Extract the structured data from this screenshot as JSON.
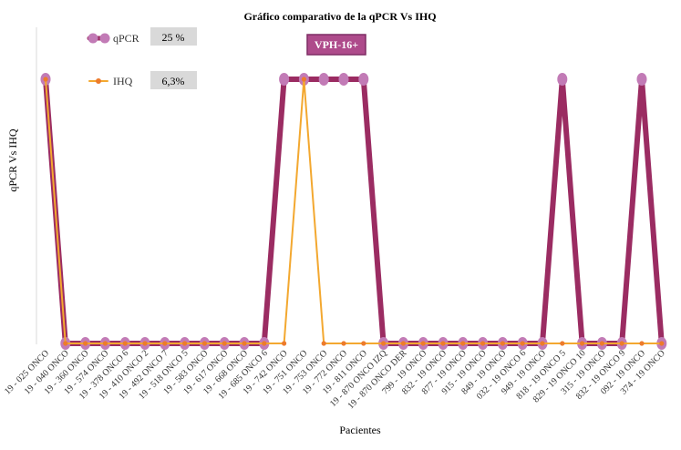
{
  "chart_data": {
    "type": "line",
    "title": "Gráfico comparativo de la qPCR Vs IHQ",
    "xlabel": "Pacientes",
    "ylabel": "qPCR Vs IHQ",
    "annotation": "VPH-16+",
    "ylim": [
      0,
      1
    ],
    "grid": false,
    "legend_position": "top-left",
    "categories": [
      "19 - 025 ONCO",
      "19 - 040 ONCO",
      "19 - 360 ONCO",
      "19 - 574 ONCO",
      "19 - 378 ONCO 6",
      "19 - 410 ONCO 2",
      "19 - 492 ONCO 7",
      "19 - 518 ONCO 5",
      "19 - 583 ONCO",
      "19 - 617 ONCO",
      "19 - 668 ONCO",
      "19 - 685 ONCO 6",
      "19 - 742 ONCO",
      "19 - 751 ONCO",
      "19 - 753 ONCO",
      "19 - 772 ONCO",
      "19 - 811 ONCO",
      "19 - 870 ONCO IZQ",
      "19 - 870 ONCO DER",
      "799 - 19 ONCO",
      "832 - 19 ONCO",
      "877 - 19 ONCO",
      "915 - 19 ONCO",
      "849 - 19 ONCO",
      "032 - 19 ONCO 6",
      "949 - 19 ONCO",
      "818 - 19 ONCO 5",
      "829 - 19 ONCO 10",
      "315 - 19 ONCO",
      "832 - 19 ONCO 9",
      "092 - 19 ONCO",
      "374 - 19 ONCO"
    ],
    "series": [
      {
        "name": "qPCR",
        "color": "#9b2c62",
        "marker_color": "#c27bb6",
        "legend_value": "25 %",
        "values": [
          1,
          0,
          0,
          0,
          0,
          0,
          0,
          0,
          0,
          0,
          0,
          0,
          1,
          1,
          1,
          1,
          1,
          0,
          0,
          0,
          0,
          0,
          0,
          0,
          0,
          0,
          1,
          0,
          0,
          0,
          1,
          0
        ]
      },
      {
        "name": "IHQ",
        "color": "#f3a830",
        "marker_color": "#ed7b2c",
        "legend_value": "6,3%",
        "values": [
          1,
          0,
          0,
          0,
          0,
          0,
          0,
          0,
          0,
          0,
          0,
          0,
          0,
          1,
          0,
          0,
          0,
          0,
          0,
          0,
          0,
          0,
          0,
          0,
          0,
          0,
          0,
          0,
          0,
          0,
          0,
          0
        ]
      }
    ]
  }
}
